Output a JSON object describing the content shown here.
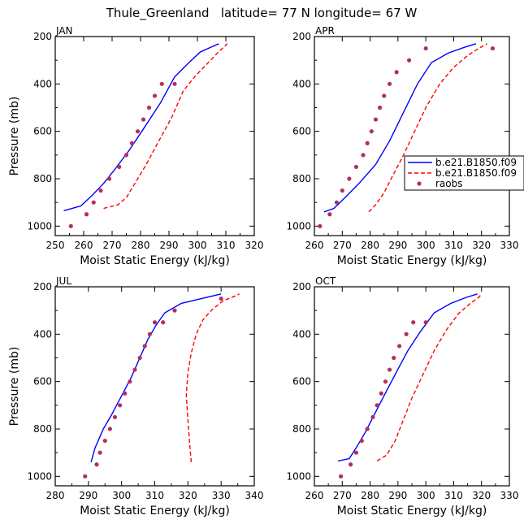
{
  "title": "Thule_Greenland   latitude= 77 N longitude= 67 W",
  "legend": {
    "entries": [
      {
        "label": "b.e21.B1850.f09",
        "style": "solid-line",
        "color": "#0000ff"
      },
      {
        "label": "b.e21.B1850.f09",
        "style": "dashed-line",
        "color": "#ff0000"
      },
      {
        "label": "raobs",
        "style": "dot",
        "color": "#b03060"
      }
    ]
  },
  "colors": {
    "solid": "#0000ff",
    "dashed": "#ff0000",
    "obs": "#b03060"
  },
  "chart_data": [
    {
      "type": "line",
      "panel": "JAN",
      "title": "JAN",
      "xlabel": "Moist Static Energy (kJ/kg)",
      "ylabel": "Pressure (mb)",
      "xlim": [
        250,
        320
      ],
      "xticks": [
        250,
        260,
        270,
        280,
        290,
        300,
        310,
        320
      ],
      "ylim": [
        1040,
        200
      ],
      "yticks": [
        200,
        400,
        600,
        800,
        1000
      ],
      "series": [
        {
          "name": "b.e21.B1850.f09",
          "style": "solid",
          "x": [
            253.0,
            259.0,
            263.0,
            267.0,
            271.0,
            276.0,
            281.0,
            287.0,
            292.0,
            297.0,
            301.0,
            307.5
          ],
          "y": [
            935,
            915,
            870,
            820,
            760,
            680,
            590,
            480,
            370,
            310,
            265,
            230
          ]
        },
        {
          "name": "b.e21.B1850.f09",
          "style": "dashed",
          "x": [
            267.0,
            272.0,
            275.0,
            278.0,
            282.0,
            286.0,
            291.0,
            295.0,
            299.0,
            303.0,
            307.0,
            310.5
          ],
          "y": [
            925,
            910,
            880,
            820,
            740,
            650,
            540,
            430,
            370,
            320,
            270,
            230
          ]
        },
        {
          "name": "raobs",
          "style": "dots",
          "x": [
            255.5,
            261.0,
            263.5,
            266.0,
            269.0,
            272.5,
            275.0,
            277.0,
            279.0,
            281.0,
            283.0,
            285.0,
            287.5,
            292.0
          ],
          "y": [
            1000,
            950,
            900,
            850,
            800,
            750,
            700,
            650,
            600,
            550,
            500,
            450,
            400,
            400
          ]
        }
      ]
    },
    {
      "type": "line",
      "panel": "APR",
      "title": "APR",
      "xlabel": "Moist Static Energy (kJ/kg)",
      "ylabel": "",
      "xlim": [
        260,
        330
      ],
      "xticks": [
        260,
        270,
        280,
        290,
        300,
        310,
        320,
        330
      ],
      "ylim": [
        1040,
        200
      ],
      "yticks": [
        200,
        400,
        600,
        800,
        1000
      ],
      "series": [
        {
          "name": "b.e21.B1850.f09",
          "style": "solid",
          "x": [
            263.5,
            267.0,
            271.0,
            276.0,
            282.0,
            287.0,
            292.0,
            297.0,
            302.0,
            308.0,
            314.0,
            318.0
          ],
          "y": [
            940,
            925,
            880,
            820,
            740,
            640,
            520,
            400,
            310,
            270,
            245,
            230
          ]
        },
        {
          "name": "b.e21.B1850.f09",
          "style": "dashed",
          "x": [
            279.5,
            282.0,
            285.0,
            288.0,
            292.0,
            296.0,
            300.0,
            305.0,
            310.0,
            315.0,
            319.0,
            322.0
          ],
          "y": [
            940,
            910,
            860,
            790,
            700,
            600,
            500,
            400,
            330,
            280,
            250,
            230
          ]
        },
        {
          "name": "raobs",
          "style": "dots",
          "x": [
            262.0,
            265.5,
            268.0,
            270.0,
            272.5,
            275.0,
            277.5,
            279.0,
            280.5,
            282.0,
            283.5,
            285.0,
            287.0,
            289.5,
            294.0,
            300.0,
            324.0
          ],
          "y": [
            1000,
            950,
            900,
            850,
            800,
            750,
            700,
            650,
            600,
            550,
            500,
            450,
            400,
            350,
            300,
            250,
            250
          ]
        }
      ]
    },
    {
      "type": "line",
      "panel": "JUL",
      "title": "JUL",
      "xlabel": "Moist Static Energy (kJ/kg)",
      "ylabel": "Pressure (mb)",
      "xlim": [
        280,
        340
      ],
      "xticks": [
        280,
        290,
        300,
        310,
        320,
        330,
        340
      ],
      "ylim": [
        1040,
        200
      ],
      "yticks": [
        200,
        400,
        600,
        800,
        1000
      ],
      "series": [
        {
          "name": "b.e21.B1850.f09",
          "style": "solid",
          "x": [
            290.8,
            292.0,
            294.5,
            297.0,
            300.0,
            303.0,
            305.5,
            308.0,
            310.5,
            313.0,
            318.0,
            324.0,
            330.0
          ],
          "y": [
            940,
            880,
            800,
            740,
            660,
            580,
            500,
            420,
            360,
            310,
            270,
            250,
            230
          ]
        },
        {
          "name": "b.e21.B1850.f09",
          "style": "dashed",
          "x": [
            321.0,
            320.5,
            320.0,
            319.5,
            320.0,
            321.0,
            322.5,
            324.5,
            327.0,
            330.5,
            334.0,
            335.5
          ],
          "y": [
            940,
            860,
            760,
            660,
            560,
            480,
            400,
            340,
            300,
            260,
            240,
            230
          ]
        },
        {
          "name": "raobs",
          "style": "dots",
          "x": [
            289.0,
            292.5,
            293.5,
            295.0,
            296.5,
            298.0,
            299.5,
            301.0,
            302.5,
            304.0,
            305.5,
            307.0,
            308.5,
            310.0,
            312.5,
            316.0,
            330.0
          ],
          "y": [
            1000,
            950,
            900,
            850,
            800,
            750,
            700,
            650,
            600,
            550,
            500,
            450,
            400,
            350,
            350,
            300,
            250
          ]
        }
      ]
    },
    {
      "type": "line",
      "panel": "OCT",
      "title": "OCT",
      "xlabel": "Moist Static Energy (kJ/kg)",
      "ylabel": "",
      "xlim": [
        260,
        330
      ],
      "xticks": [
        260,
        270,
        280,
        290,
        300,
        310,
        320,
        330
      ],
      "ylim": [
        1040,
        200
      ],
      "yticks": [
        200,
        400,
        600,
        800,
        1000
      ],
      "series": [
        {
          "name": "b.e21.B1850.f09",
          "style": "solid",
          "x": [
            268.5,
            272.5,
            275.0,
            278.0,
            281.5,
            285.0,
            289.0,
            293.5,
            298.0,
            303.0,
            309.0,
            314.5,
            318.5
          ],
          "y": [
            935,
            925,
            880,
            820,
            740,
            660,
            570,
            470,
            390,
            310,
            270,
            245,
            230
          ]
        },
        {
          "name": "b.e21.B1850.f09",
          "style": "dashed",
          "x": [
            282.5,
            286.0,
            289.0,
            292.0,
            295.0,
            299.0,
            303.0,
            307.5,
            312.0,
            316.0,
            319.0,
            320.0
          ],
          "y": [
            935,
            910,
            850,
            760,
            670,
            570,
            470,
            380,
            310,
            270,
            245,
            230
          ]
        },
        {
          "name": "raobs",
          "style": "dots",
          "x": [
            269.5,
            273.0,
            275.0,
            277.0,
            279.0,
            281.0,
            282.5,
            284.0,
            285.5,
            287.0,
            288.5,
            290.5,
            293.0,
            295.5,
            300.0
          ],
          "y": [
            1000,
            950,
            900,
            850,
            800,
            750,
            700,
            650,
            600,
            550,
            500,
            450,
            400,
            350,
            350
          ]
        }
      ]
    }
  ]
}
